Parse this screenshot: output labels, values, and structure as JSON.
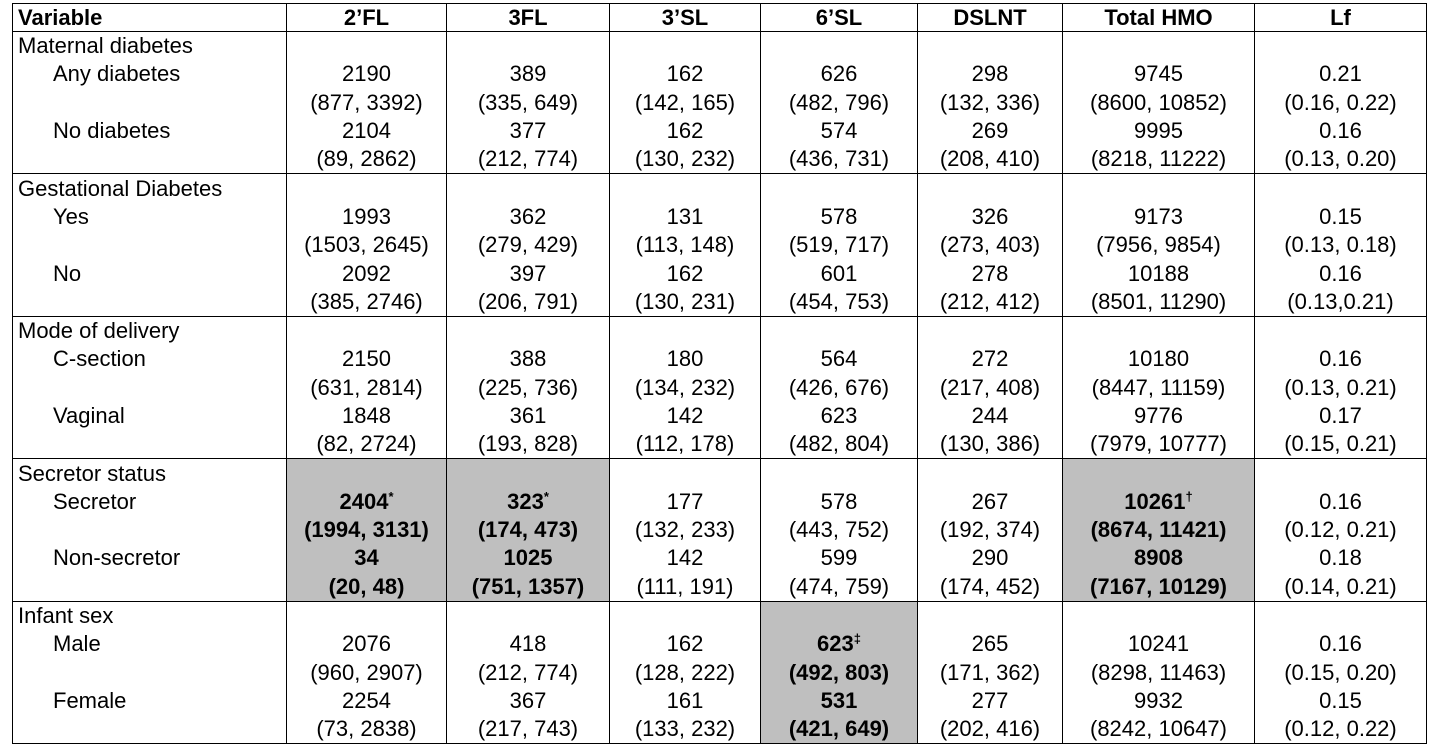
{
  "columns": [
    "Variable",
    "2’FL",
    "3FL",
    "3’SL",
    "6’SL",
    "DSLNT",
    "Total HMO",
    "Lf"
  ],
  "groups": [
    {
      "title": "Maternal diabetes",
      "rows": [
        {
          "label": "Any diabetes",
          "values": [
            "2190",
            "389",
            "162",
            "626",
            "298",
            "9745",
            "0.21"
          ],
          "ranges": [
            "(877, 3392)",
            "(335, 649)",
            "(142, 165)",
            "(482, 796)",
            "(132, 336)",
            "(8600, 10852)",
            "(0.16, 0.22)"
          ],
          "marks": [
            "",
            "",
            "",
            "",
            "",
            "",
            ""
          ]
        },
        {
          "label": "No diabetes",
          "values": [
            "2104",
            "377",
            "162",
            "574",
            "269",
            "9995",
            "0.16"
          ],
          "ranges": [
            "(89, 2862)",
            "(212, 774)",
            "(130, 232)",
            "(436, 731)",
            "(208, 410)",
            "(8218, 11222)",
            "(0.13, 0.20)"
          ],
          "marks": [
            "",
            "",
            "",
            "",
            "",
            "",
            ""
          ]
        }
      ]
    },
    {
      "title": "Gestational Diabetes",
      "rows": [
        {
          "label": "Yes",
          "values": [
            "1993",
            "362",
            "131",
            "578",
            "326",
            "9173",
            "0.15"
          ],
          "ranges": [
            "(1503, 2645)",
            "(279, 429)",
            "(113, 148)",
            "(519, 717)",
            "(273, 403)",
            "(7956, 9854)",
            "(0.13, 0.18)"
          ],
          "marks": [
            "",
            "",
            "",
            "",
            "",
            "",
            ""
          ]
        },
        {
          "label": "No",
          "values": [
            "2092",
            "397",
            "162",
            "601",
            "278",
            "10188",
            "0.16"
          ],
          "ranges": [
            "(385, 2746)",
            "(206, 791)",
            "(130, 231)",
            "(454, 753)",
            "(212, 412)",
            "(8501, 11290)",
            "(0.13,0.21)"
          ],
          "marks": [
            "",
            "",
            "",
            "",
            "",
            "",
            ""
          ]
        }
      ]
    },
    {
      "title": "Mode of delivery",
      "rows": [
        {
          "label": "C-section",
          "values": [
            "2150",
            "388",
            "180",
            "564",
            "272",
            "10180",
            "0.16"
          ],
          "ranges": [
            "(631, 2814)",
            "(225, 736)",
            "(134, 232)",
            "(426, 676)",
            "(217, 408)",
            "(8447, 11159)",
            "(0.13, 0.21)"
          ],
          "marks": [
            "",
            "",
            "",
            "",
            "",
            "",
            ""
          ]
        },
        {
          "label": "Vaginal",
          "values": [
            "1848",
            "361",
            "142",
            "623",
            "244",
            "9776",
            "0.17"
          ],
          "ranges": [
            "(82, 2724)",
            "(193, 828)",
            "(112, 178)",
            "(482, 804)",
            "(130, 386)",
            "(7979, 10777)",
            "(0.15, 0.21)"
          ],
          "marks": [
            "",
            "",
            "",
            "",
            "",
            "",
            ""
          ]
        }
      ]
    },
    {
      "title": "Secretor status",
      "highlight_cols": [
        0,
        1,
        5
      ],
      "rows": [
        {
          "label": "Secretor",
          "values": [
            "2404",
            "323",
            "177",
            "578",
            "267",
            "10261",
            "0.16"
          ],
          "ranges": [
            "(1994, 3131)",
            "(174, 473)",
            "(132, 233)",
            "(443, 752)",
            "(192, 374)",
            "(8674, 11421)",
            "(0.12, 0.21)"
          ],
          "marks": [
            "*",
            "*",
            "",
            "",
            "",
            "†",
            ""
          ]
        },
        {
          "label": "Non-secretor",
          "values": [
            "34",
            "1025",
            "142",
            "599",
            "290",
            "8908",
            "0.18"
          ],
          "ranges": [
            "(20, 48)",
            "(751, 1357)",
            "(111, 191)",
            "(474, 759)",
            "(174, 452)",
            "(7167, 10129)",
            "(0.14, 0.21)"
          ],
          "marks": [
            "",
            "",
            "",
            "",
            "",
            "",
            ""
          ]
        }
      ]
    },
    {
      "title": "Infant sex",
      "highlight_cols": [
        3
      ],
      "rows": [
        {
          "label": "Male",
          "values": [
            "2076",
            "418",
            "162",
            "623",
            "265",
            "10241",
            "0.16"
          ],
          "ranges": [
            "(960, 2907)",
            "(212, 774)",
            "(128, 222)",
            "(492, 803)",
            "(171, 362)",
            "(8298, 11463)",
            "(0.15, 0.20)"
          ],
          "marks": [
            "",
            "",
            "",
            "‡",
            "",
            "",
            ""
          ]
        },
        {
          "label": "Female",
          "values": [
            "2254",
            "367",
            "161",
            "531",
            "277",
            "9932",
            "0.15"
          ],
          "ranges": [
            "(73, 2838)",
            "(217, 743)",
            "(133, 232)",
            "(421, 649)",
            "(202, 416)",
            "(8242, 10647)",
            "(0.12, 0.22)"
          ],
          "marks": [
            "",
            "",
            "",
            "",
            "",
            "",
            ""
          ]
        }
      ]
    }
  ]
}
